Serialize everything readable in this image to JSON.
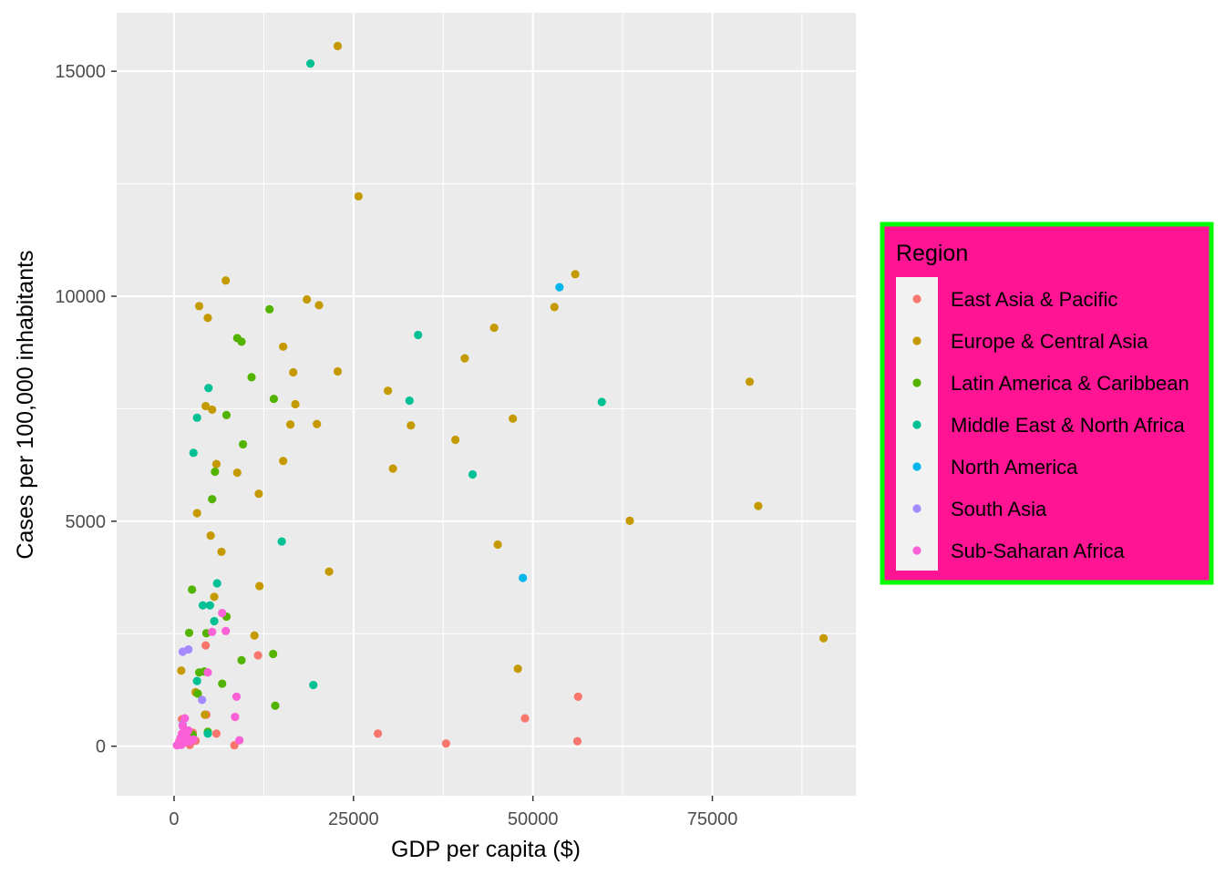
{
  "chart_data": {
    "type": "scatter",
    "xlabel": "GDP per capita ($)",
    "ylabel": "Cases per 100,000 inhabitants",
    "xlim": [
      -8000,
      95000
    ],
    "ylim": [
      -1100,
      16300
    ],
    "x_ticks": [
      0,
      25000,
      50000,
      75000
    ],
    "x_tick_labels": [
      "0",
      "25000",
      "50000",
      "75000"
    ],
    "y_ticks": [
      0,
      5000,
      10000,
      15000
    ],
    "y_tick_labels": [
      "0",
      "5000",
      "10000",
      "15000"
    ],
    "grid": true,
    "legend": {
      "title": "Region",
      "position": "right"
    },
    "series": [
      {
        "name": "East Asia & Pacific",
        "color": "#F8766D",
        "points": [
          [
            28400,
            280
          ],
          [
            37900,
            60
          ],
          [
            48900,
            620
          ],
          [
            56300,
            1100
          ],
          [
            56200,
            110
          ],
          [
            11700,
            2020
          ],
          [
            4400,
            2240
          ],
          [
            4500,
            700
          ],
          [
            5900,
            280
          ],
          [
            8400,
            20
          ],
          [
            2200,
            30
          ],
          [
            1600,
            150
          ],
          [
            1100,
            600
          ],
          [
            2600,
            300
          ],
          [
            3000,
            120
          ]
        ]
      },
      {
        "name": "Europe & Central Asia",
        "color": "#C49A00",
        "points": [
          [
            22800,
            15560
          ],
          [
            25700,
            12220
          ],
          [
            7200,
            10350
          ],
          [
            55900,
            10490
          ],
          [
            3500,
            9780
          ],
          [
            4700,
            9520
          ],
          [
            18500,
            9930
          ],
          [
            20200,
            9800
          ],
          [
            53000,
            9760
          ],
          [
            44600,
            9300
          ],
          [
            40500,
            8620
          ],
          [
            15200,
            8880
          ],
          [
            16600,
            8310
          ],
          [
            22800,
            8330
          ],
          [
            29800,
            7900
          ],
          [
            80200,
            8100
          ],
          [
            4400,
            7560
          ],
          [
            5300,
            7480
          ],
          [
            16900,
            7600
          ],
          [
            16200,
            7150
          ],
          [
            19900,
            7160
          ],
          [
            33000,
            7130
          ],
          [
            47200,
            7280
          ],
          [
            39200,
            6810
          ],
          [
            5900,
            6270
          ],
          [
            8800,
            6080
          ],
          [
            15200,
            6340
          ],
          [
            30500,
            6170
          ],
          [
            3200,
            5180
          ],
          [
            11800,
            5610
          ],
          [
            81400,
            5340
          ],
          [
            63500,
            5010
          ],
          [
            5100,
            4680
          ],
          [
            6600,
            4320
          ],
          [
            45100,
            4480
          ],
          [
            21600,
            3880
          ],
          [
            5600,
            3320
          ],
          [
            11900,
            3560
          ],
          [
            11200,
            2460
          ],
          [
            90500,
            2400
          ],
          [
            47900,
            1720
          ],
          [
            1000,
            1680
          ],
          [
            4300,
            700
          ],
          [
            3000,
            1200
          ],
          [
            2300,
            280
          ]
        ]
      },
      {
        "name": "Latin America & Caribbean",
        "color": "#53B400",
        "points": [
          [
            13300,
            9710
          ],
          [
            8800,
            9070
          ],
          [
            9400,
            8990
          ],
          [
            10800,
            8200
          ],
          [
            13900,
            7720
          ],
          [
            7300,
            7360
          ],
          [
            9600,
            6710
          ],
          [
            5700,
            6100
          ],
          [
            5300,
            5490
          ],
          [
            2500,
            3480
          ],
          [
            7300,
            2880
          ],
          [
            2100,
            2520
          ],
          [
            4500,
            2510
          ],
          [
            9400,
            1910
          ],
          [
            13800,
            2050
          ],
          [
            3500,
            1640
          ],
          [
            4200,
            1660
          ],
          [
            6700,
            1390
          ],
          [
            3300,
            1170
          ],
          [
            14100,
            900
          ],
          [
            4700,
            320
          ],
          [
            2600,
            250
          ],
          [
            1700,
            200
          ]
        ]
      },
      {
        "name": "Middle East & North Africa",
        "color": "#00C094",
        "points": [
          [
            19000,
            15170
          ],
          [
            34000,
            9140
          ],
          [
            4800,
            7960
          ],
          [
            32800,
            7680
          ],
          [
            59600,
            7650
          ],
          [
            3200,
            7300
          ],
          [
            2700,
            6520
          ],
          [
            41600,
            6040
          ],
          [
            15000,
            4550
          ],
          [
            6000,
            3620
          ],
          [
            4000,
            3130
          ],
          [
            5000,
            3130
          ],
          [
            5600,
            2780
          ],
          [
            3200,
            1450
          ],
          [
            19400,
            1360
          ],
          [
            4700,
            280
          ],
          [
            800,
            50
          ],
          [
            1500,
            250
          ]
        ]
      },
      {
        "name": "North America",
        "color": "#00B6EB",
        "points": [
          [
            53700,
            10200
          ],
          [
            48600,
            3740
          ]
        ]
      },
      {
        "name": "South Asia",
        "color": "#A58AFF",
        "points": [
          [
            2000,
            2150
          ],
          [
            1200,
            2100
          ],
          [
            3900,
            1030
          ],
          [
            1200,
            480
          ],
          [
            1700,
            300
          ],
          [
            600,
            50
          ]
        ]
      },
      {
        "name": "Sub-Saharan Africa",
        "color": "#FB61D7",
        "points": [
          [
            6700,
            2960
          ],
          [
            7200,
            2560
          ],
          [
            5300,
            2540
          ],
          [
            4700,
            1640
          ],
          [
            8700,
            1100
          ],
          [
            8500,
            650
          ],
          [
            9100,
            130
          ],
          [
            1500,
            620
          ],
          [
            1200,
            450
          ],
          [
            1100,
            280
          ],
          [
            1800,
            200
          ],
          [
            2200,
            100
          ],
          [
            2700,
            150
          ],
          [
            700,
            100
          ],
          [
            400,
            20
          ],
          [
            1000,
            30
          ],
          [
            1400,
            80
          ],
          [
            2000,
            350
          ],
          [
            900,
            180
          ]
        ]
      }
    ]
  },
  "style": {
    "panel_background": "#EBEBEB",
    "grid_major_color": "#FFFFFF",
    "legend_background": "#FF1493",
    "legend_border_color": "#00FF00",
    "legend_key_background": "#F2F2F2"
  }
}
